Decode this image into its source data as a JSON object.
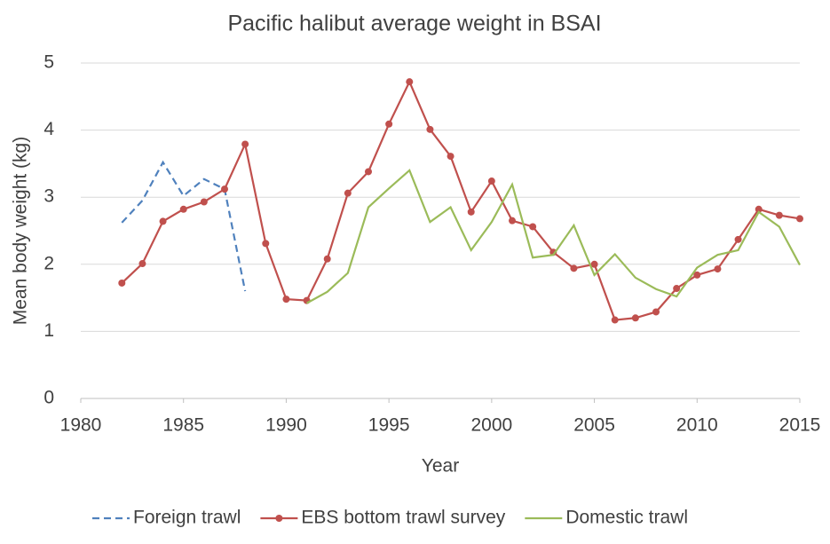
{
  "chart_data": {
    "type": "line",
    "title": "Pacific halibut average weight in BSAI",
    "xlabel": "Year",
    "ylabel": "Mean body weight (kg)",
    "xlim": [
      1980,
      2015
    ],
    "xticks": [
      1980,
      1985,
      1990,
      1995,
      2000,
      2005,
      2010,
      2015
    ],
    "ylim": [
      0,
      5
    ],
    "yticks": [
      0,
      1,
      2,
      3,
      4,
      5
    ],
    "grid": true,
    "legend": "bottom",
    "series": [
      {
        "name": "Foreign trawl",
        "color": "#4f81bd",
        "dash": true,
        "marker": false,
        "x": [
          1982,
          1983,
          1984,
          1985,
          1986,
          1987,
          1988
        ],
        "values": [
          2.62,
          2.95,
          3.52,
          3.02,
          3.27,
          3.12,
          1.6
        ]
      },
      {
        "name": "EBS bottom trawl survey",
        "color": "#c0504d",
        "dash": false,
        "marker": true,
        "x": [
          1982,
          1983,
          1984,
          1985,
          1986,
          1987,
          1988,
          1989,
          1990,
          1991,
          1992,
          1993,
          1994,
          1995,
          1996,
          1997,
          1998,
          1999,
          2000,
          2001,
          2002,
          2003,
          2004,
          2005,
          2006,
          2007,
          2008,
          2009,
          2010,
          2011,
          2012,
          2013,
          2014,
          2015
        ],
        "values": [
          1.72,
          2.01,
          2.64,
          2.82,
          2.93,
          3.12,
          3.79,
          2.31,
          1.48,
          1.46,
          2.08,
          3.06,
          3.38,
          4.09,
          4.72,
          4.01,
          3.61,
          2.78,
          3.24,
          2.65,
          2.56,
          2.18,
          1.94,
          2.0,
          1.17,
          1.2,
          1.29,
          1.64,
          1.84,
          1.93,
          2.37,
          2.82,
          2.73,
          2.68
        ]
      },
      {
        "name": "Domestic trawl",
        "color": "#9bbb59",
        "dash": false,
        "marker": false,
        "x": [
          1991,
          1992,
          1993,
          1994,
          1995,
          1996,
          1997,
          1998,
          1999,
          2000,
          2001,
          2002,
          2003,
          2004,
          2005,
          2006,
          2007,
          2008,
          2009,
          2010,
          2011,
          2012,
          2013,
          2014,
          2015
        ],
        "values": [
          1.42,
          1.59,
          1.87,
          2.85,
          3.13,
          3.4,
          2.63,
          2.85,
          2.21,
          2.63,
          3.19,
          2.1,
          2.14,
          2.58,
          1.84,
          2.15,
          1.8,
          1.63,
          1.52,
          1.95,
          2.14,
          2.21,
          2.78,
          2.56,
          1.99
        ]
      }
    ]
  }
}
